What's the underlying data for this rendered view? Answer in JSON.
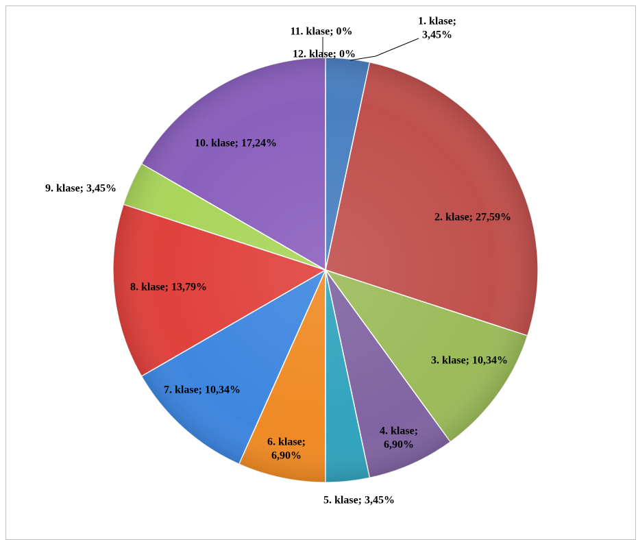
{
  "chart_data": {
    "type": "pie",
    "title": "",
    "slices": [
      {
        "label": "1. klase",
        "value": 3.45,
        "display": [
          "1. klase;",
          "3,45%"
        ],
        "color": "#4a7fc1"
      },
      {
        "label": "2. klase",
        "value": 27.59,
        "display": [
          "2. klase; 27,59%"
        ],
        "color": "#c0504d"
      },
      {
        "label": "3. klase",
        "value": 10.34,
        "display": [
          "3. klase; 10,34%"
        ],
        "color": "#9bbb59"
      },
      {
        "label": "4. klase",
        "value": 6.9,
        "display": [
          "4. klase;",
          "6,90%"
        ],
        "color": "#8064a2"
      },
      {
        "label": "5. klase",
        "value": 3.45,
        "display": [
          "5. klase; 3,45%"
        ],
        "color": "#31a3bd"
      },
      {
        "label": "6. klase",
        "value": 6.9,
        "display": [
          "6. klase;",
          "6,90%"
        ],
        "color": "#f08a24"
      },
      {
        "label": "7. klase",
        "value": 10.34,
        "display": [
          "7. klase; 10,34%"
        ],
        "color": "#3d86e0"
      },
      {
        "label": "8. klase",
        "value": 13.79,
        "display": [
          "8. klase; 13,79%"
        ],
        "color": "#e0413c"
      },
      {
        "label": "9. klase",
        "value": 3.45,
        "display": [
          "9. klase; 3,45%"
        ],
        "color": "#a9d55a"
      },
      {
        "label": "10. klase",
        "value": 17.24,
        "display": [
          "10. klase; 17,24%"
        ],
        "color": "#8a60bd"
      },
      {
        "label": "11. klase",
        "value": 0,
        "display": [
          "11. klase; 0%"
        ],
        "color": "#2fb5cf"
      },
      {
        "label": "12. klase",
        "value": 0,
        "display": [
          "12. klase; 0%"
        ],
        "color": "#f59a3a"
      }
    ],
    "legend": "none",
    "data_labels": "category; percentage"
  }
}
